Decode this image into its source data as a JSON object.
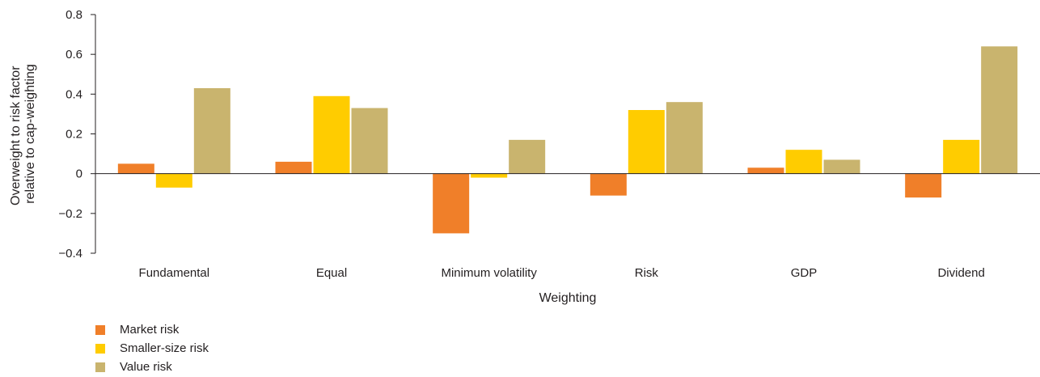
{
  "chart_data": {
    "type": "bar",
    "xlabel": "Weighting",
    "ylabel_lines": [
      "Overweight to risk factor",
      "relative to cap-weighting"
    ],
    "categories": [
      "Fundamental",
      "Equal",
      "Minimum volatility",
      "Risk",
      "GDP",
      "Dividend"
    ],
    "ylim": [
      -0.4,
      0.8
    ],
    "yticks": [
      -0.4,
      -0.2,
      0,
      0.2,
      0.4,
      0.6,
      0.8
    ],
    "ytick_labels": [
      "−0.4",
      "−0.2",
      "0",
      "0.2",
      "0.4",
      "0.6",
      "0.8"
    ],
    "grid": false,
    "legend_position": "bottom-left",
    "series": [
      {
        "name": "Market risk",
        "color": "#f07f29",
        "values": [
          0.05,
          0.06,
          -0.3,
          -0.11,
          0.03,
          -0.12
        ]
      },
      {
        "name": "Smaller-size risk",
        "color": "#ffcc00",
        "values": [
          -0.07,
          0.39,
          -0.02,
          0.32,
          0.12,
          0.17
        ]
      },
      {
        "name": "Value risk",
        "color": "#c9b46e",
        "values": [
          0.43,
          0.33,
          0.17,
          0.36,
          0.07,
          0.64
        ]
      }
    ]
  }
}
